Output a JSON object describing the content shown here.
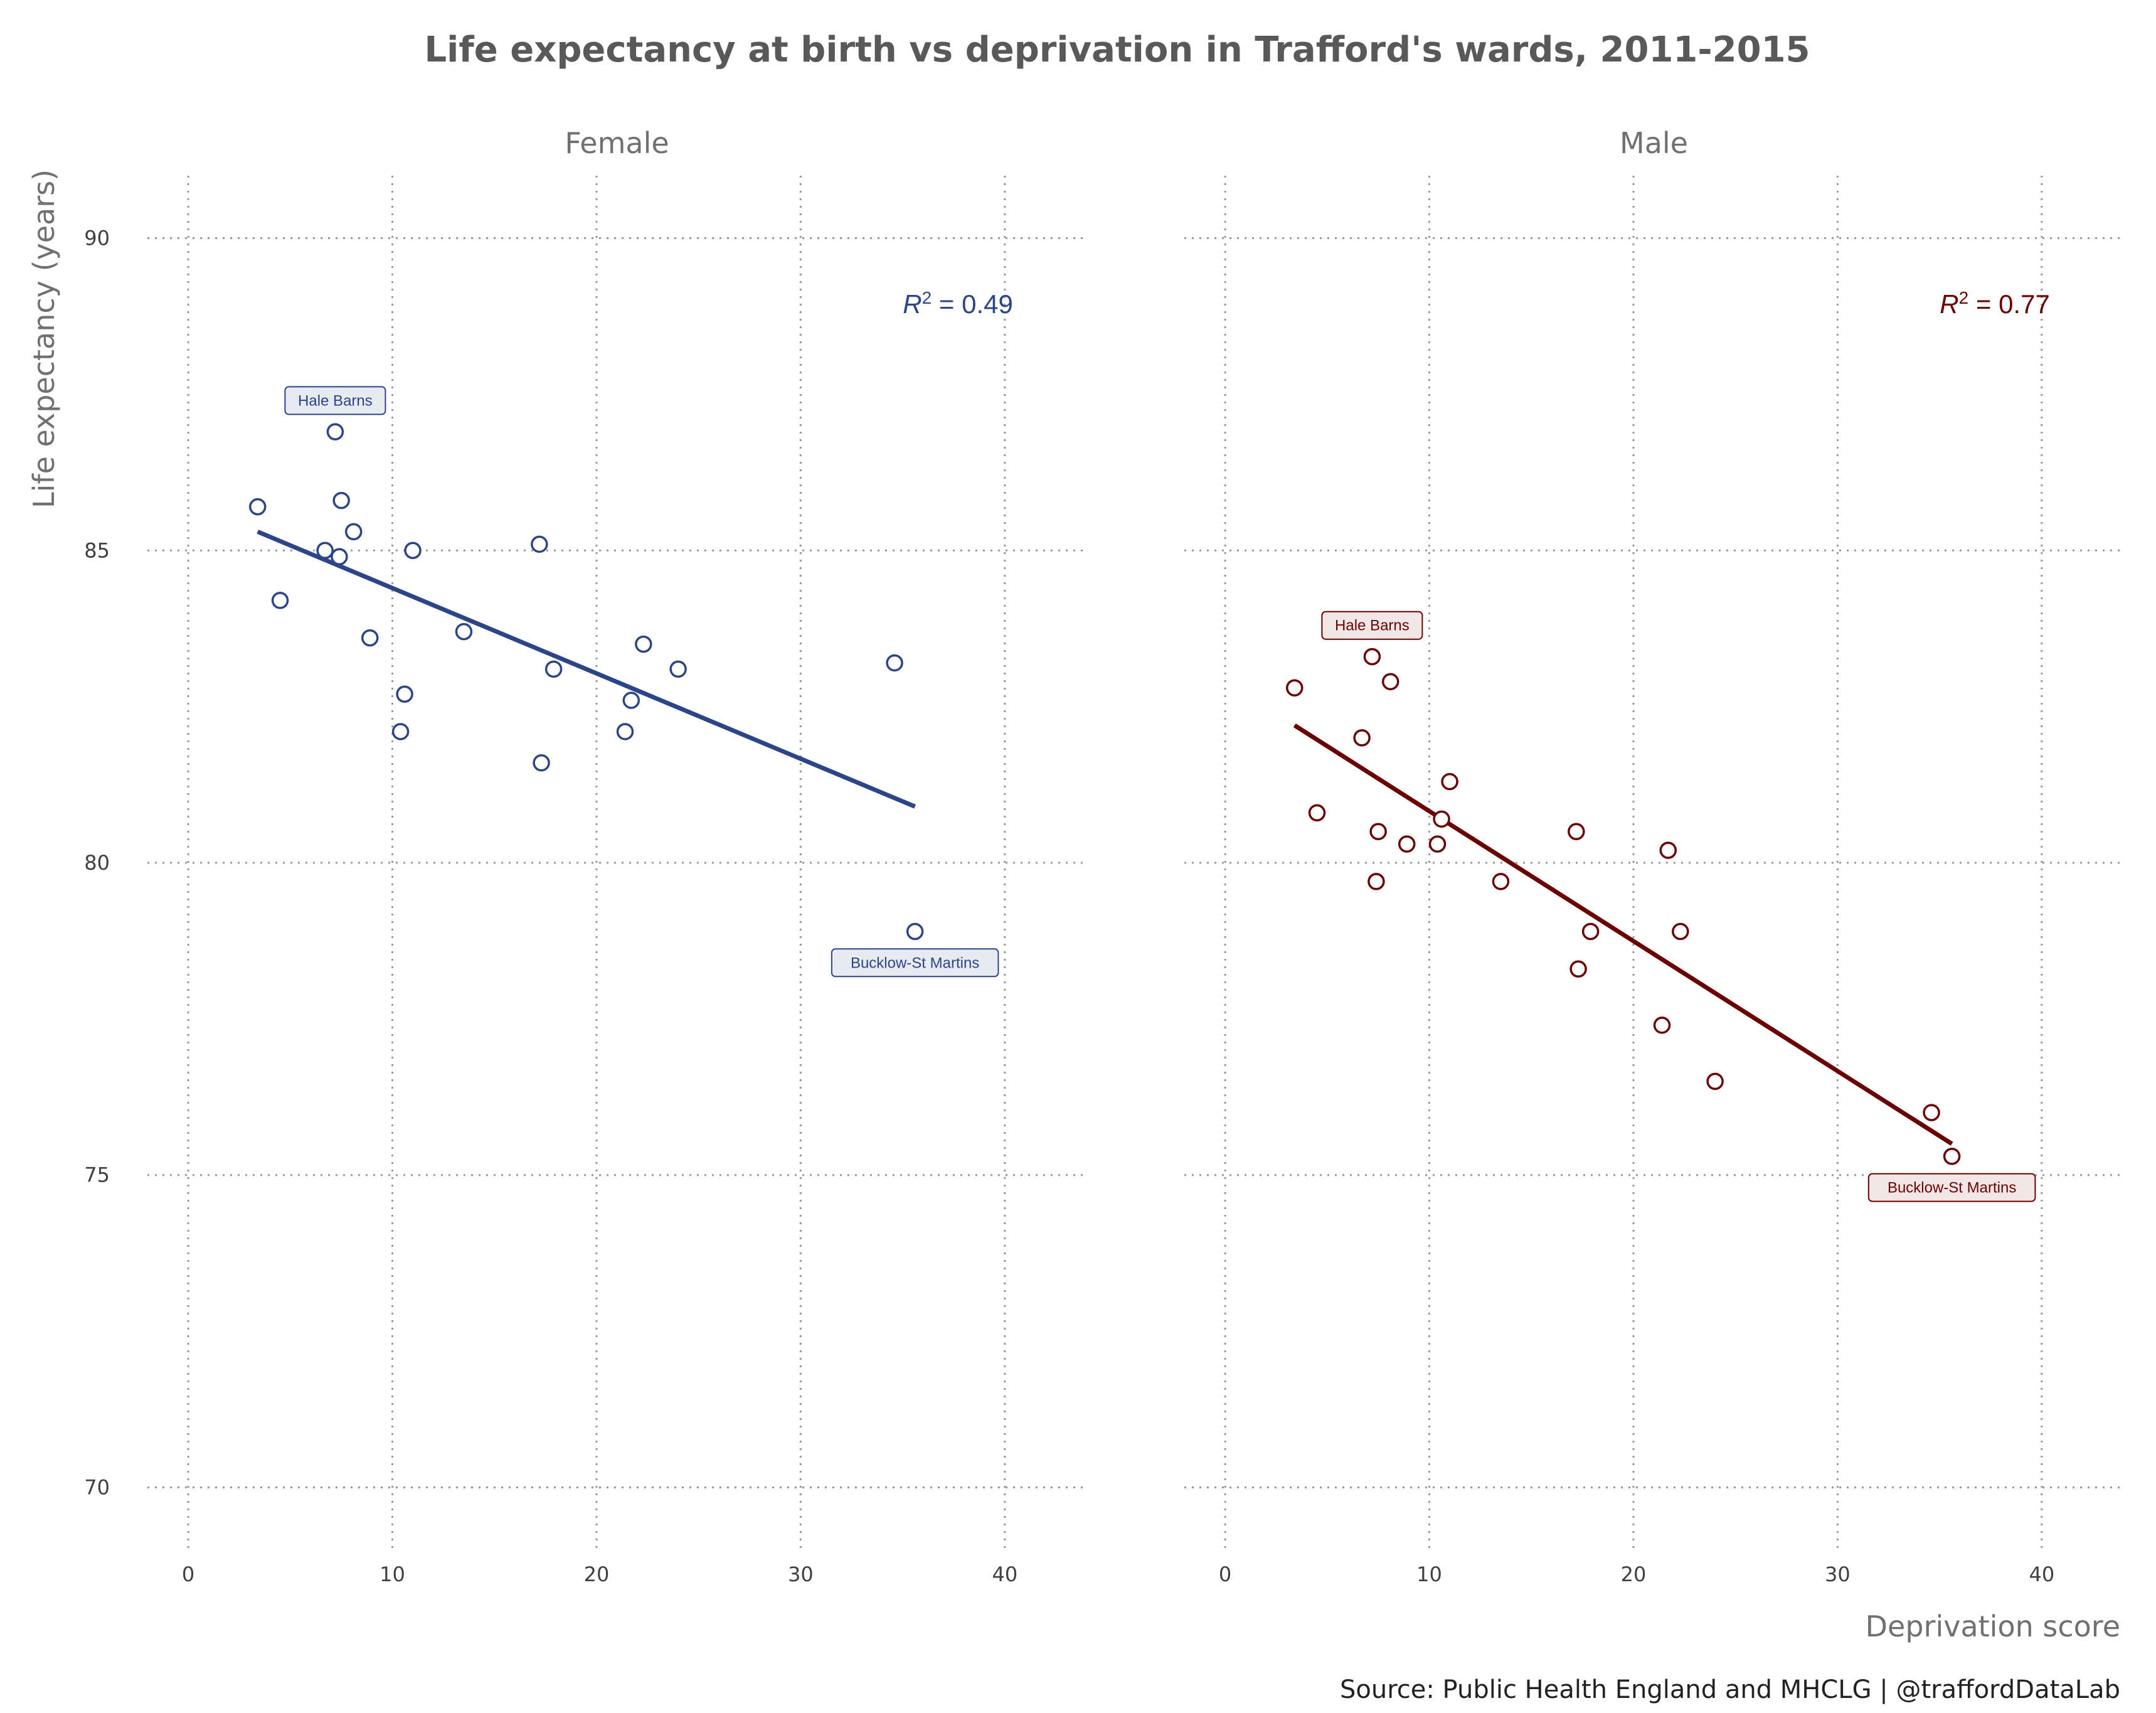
{
  "chart_data": {
    "type": "scatter",
    "title": "Life expectancy at birth vs deprivation in Trafford's wards, 2011-2015",
    "xlabel": "Deprivation score",
    "ylabel": "Life expectancy (years)",
    "caption": "Source: Public Health England and MHCLG | @traffordDataLab",
    "xlim": [
      -2,
      44
    ],
    "ylim": [
      69,
      91
    ],
    "x_ticks": [
      0,
      10,
      20,
      30,
      40
    ],
    "y_ticks": [
      70,
      75,
      80,
      85,
      90
    ],
    "grid": "dotted major x and y",
    "panels": [
      {
        "name": "Female",
        "color": "#2C4589",
        "label_fill": "#E8EAF1",
        "r2_prefix": "R",
        "r2_exp": "2",
        "r2_value": "= 0.49",
        "fit": {
          "x": [
            3.4,
            35.6
          ],
          "y": [
            85.3,
            80.9
          ]
        },
        "points": [
          {
            "x": 3.4,
            "y": 85.7
          },
          {
            "x": 4.5,
            "y": 84.2
          },
          {
            "x": 6.7,
            "y": 85.0
          },
          {
            "x": 7.2,
            "y": 86.9
          },
          {
            "x": 7.4,
            "y": 84.9
          },
          {
            "x": 7.5,
            "y": 85.8
          },
          {
            "x": 8.1,
            "y": 85.3
          },
          {
            "x": 8.9,
            "y": 83.6
          },
          {
            "x": 10.4,
            "y": 82.1
          },
          {
            "x": 10.6,
            "y": 82.7
          },
          {
            "x": 11.0,
            "y": 85.0
          },
          {
            "x": 13.5,
            "y": 83.7
          },
          {
            "x": 17.2,
            "y": 85.1
          },
          {
            "x": 17.3,
            "y": 81.6
          },
          {
            "x": 17.9,
            "y": 83.1
          },
          {
            "x": 21.4,
            "y": 82.1
          },
          {
            "x": 21.7,
            "y": 82.6
          },
          {
            "x": 22.3,
            "y": 83.5
          },
          {
            "x": 24.0,
            "y": 83.1
          },
          {
            "x": 34.6,
            "y": 83.2
          },
          {
            "x": 35.6,
            "y": 78.9
          }
        ],
        "labels": [
          {
            "text": "Hale Barns",
            "x": 7.2,
            "y": 87.4
          },
          {
            "text": "Bucklow-St Martins",
            "x": 35.6,
            "y": 78.4
          }
        ]
      },
      {
        "name": "Male",
        "color": "#6B0000",
        "label_fill": "#F2E6E6",
        "r2_prefix": "R",
        "r2_exp": "2",
        "r2_value": "= 0.77",
        "fit": {
          "x": [
            3.4,
            35.6
          ],
          "y": [
            82.2,
            75.5
          ]
        },
        "points": [
          {
            "x": 3.4,
            "y": 82.8
          },
          {
            "x": 4.5,
            "y": 80.8
          },
          {
            "x": 6.7,
            "y": 82.0
          },
          {
            "x": 7.2,
            "y": 83.3
          },
          {
            "x": 7.4,
            "y": 79.7
          },
          {
            "x": 7.5,
            "y": 80.5
          },
          {
            "x": 8.1,
            "y": 82.9
          },
          {
            "x": 8.9,
            "y": 80.3
          },
          {
            "x": 10.4,
            "y": 80.3
          },
          {
            "x": 10.6,
            "y": 80.7
          },
          {
            "x": 11.0,
            "y": 81.3
          },
          {
            "x": 13.5,
            "y": 79.7
          },
          {
            "x": 17.2,
            "y": 80.5
          },
          {
            "x": 17.3,
            "y": 78.3
          },
          {
            "x": 17.9,
            "y": 78.9
          },
          {
            "x": 21.4,
            "y": 77.4
          },
          {
            "x": 21.7,
            "y": 80.2
          },
          {
            "x": 22.3,
            "y": 78.9
          },
          {
            "x": 24.0,
            "y": 76.5
          },
          {
            "x": 34.6,
            "y": 76.0
          },
          {
            "x": 35.6,
            "y": 75.3
          }
        ],
        "labels": [
          {
            "text": "Hale Barns",
            "x": 7.2,
            "y": 83.8
          },
          {
            "text": "Bucklow-St Martins",
            "x": 35.6,
            "y": 74.8
          }
        ]
      }
    ]
  }
}
